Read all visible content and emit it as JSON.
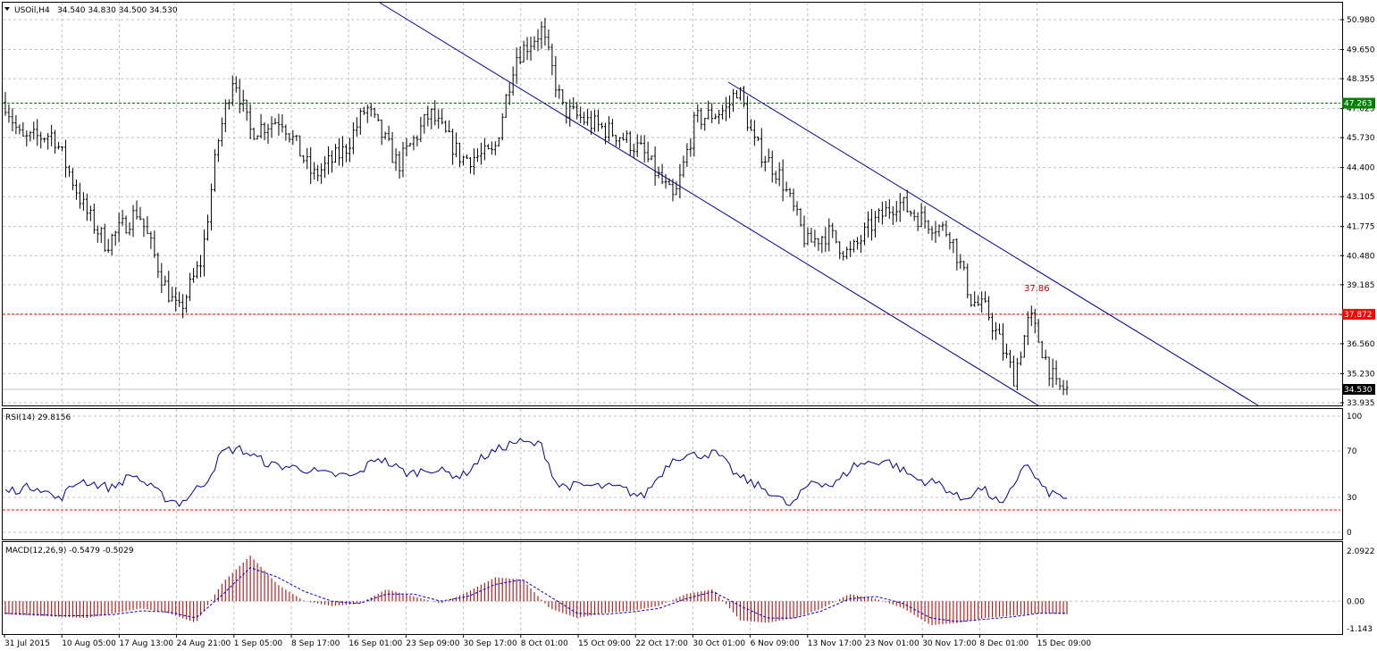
{
  "header": {
    "symbol": "USOil,H4",
    "ohlc": "34.540 34.830 34.500 34.530"
  },
  "rsi": {
    "label": "RSI(14) 29.8156"
  },
  "macd": {
    "label": "MACD(12,26,9) -0.5479 -0.5029"
  },
  "annotation": {
    "text": "37.86",
    "color": "#c00000"
  },
  "colors": {
    "bars": "#000000",
    "channel": "#00008b",
    "level_green": "#008000",
    "level_red": "#ff0000",
    "rsi_line": "#00008b",
    "macd_hist": "#b22222",
    "macd_signal": "#0000cd"
  },
  "chart_data": [
    {
      "type": "ohlc",
      "title": "USOil,H4",
      "ylim": [
        33.4,
        52.2
      ],
      "yticks": [
        "50.980",
        "49.650",
        "48.355",
        "47.025",
        "45.730",
        "44.400",
        "43.105",
        "41.775",
        "40.480",
        "39.185",
        "37.860",
        "36.560",
        "35.230",
        "33.935"
      ],
      "levels": [
        {
          "value": 47.263,
          "label": "47.263",
          "color": "#008000"
        },
        {
          "value": 37.872,
          "label": "37.872",
          "color": "#ff0000"
        }
      ],
      "current_price": {
        "value": 34.53,
        "label": "34.530"
      },
      "channel_upper": [
        [
          0.0,
          52.9
        ],
        [
          0.0,
          52.9
        ]
      ],
      "keypoints": [
        [
          0,
          47.3
        ],
        [
          0.015,
          45.6
        ],
        [
          0.045,
          45.9
        ],
        [
          0.075,
          42.5
        ],
        [
          0.095,
          41.0
        ],
        [
          0.125,
          42.5
        ],
        [
          0.15,
          39.2
        ],
        [
          0.163,
          37.9
        ],
        [
          0.185,
          40.3
        ],
        [
          0.2,
          45.5
        ],
        [
          0.215,
          48.6
        ],
        [
          0.23,
          46.0
        ],
        [
          0.26,
          46.6
        ],
        [
          0.29,
          44.0
        ],
        [
          0.32,
          45.2
        ],
        [
          0.34,
          47.1
        ],
        [
          0.37,
          44.5
        ],
        [
          0.4,
          46.8
        ],
        [
          0.43,
          44.8
        ],
        [
          0.46,
          45.0
        ],
        [
          0.48,
          49.3
        ],
        [
          0.505,
          50.5
        ],
        [
          0.525,
          47.0
        ],
        [
          0.55,
          46.4
        ],
        [
          0.58,
          45.8
        ],
        [
          0.6,
          45.1
        ],
        [
          0.63,
          42.9
        ],
        [
          0.65,
          46.5
        ],
        [
          0.68,
          47.0
        ],
        [
          0.69,
          48.0
        ],
        [
          0.705,
          45.5
        ],
        [
          0.73,
          44.0
        ],
        [
          0.755,
          41.0
        ],
        [
          0.775,
          41.5
        ],
        [
          0.795,
          40.5
        ],
        [
          0.815,
          41.8
        ],
        [
          0.84,
          42.9
        ],
        [
          0.86,
          42.2
        ],
        [
          0.89,
          41.5
        ],
        [
          0.91,
          38.5
        ],
        [
          0.925,
          38.0
        ],
        [
          0.95,
          35.1
        ],
        [
          0.965,
          37.8
        ],
        [
          0.99,
          34.6
        ],
        [
          1.0,
          34.53
        ]
      ],
      "x_tick_labels": [
        "31 Jul 2015",
        "10 Aug 05:00",
        "17 Aug 13:00",
        "24 Aug 21:00",
        "1 Sep 05:00",
        "8 Sep 17:00",
        "16 Sep 01:00",
        "23 Sep 09:00",
        "30 Sep 17:00",
        "8 Oct 01:00",
        "15 Oct 09:00",
        "22 Oct 17:00",
        "30 Oct 01:00",
        "6 Nov 09:00",
        "13 Nov 17:00",
        "23 Nov 01:00",
        "30 Nov 17:00",
        "8 Dec 01:00",
        "15 Dec 09:00"
      ]
    },
    {
      "type": "line",
      "title": "RSI(14) 29.8156",
      "ylim": [
        0,
        100
      ],
      "yticks": [
        "100",
        "70",
        "30",
        "0"
      ],
      "levels": [
        30
      ],
      "last_value": 29.8156,
      "keypoints": [
        [
          0,
          35
        ],
        [
          0.03,
          40
        ],
        [
          0.05,
          28
        ],
        [
          0.07,
          45
        ],
        [
          0.1,
          38
        ],
        [
          0.12,
          50
        ],
        [
          0.15,
          30
        ],
        [
          0.165,
          25
        ],
        [
          0.19,
          45
        ],
        [
          0.205,
          70
        ],
        [
          0.22,
          72
        ],
        [
          0.25,
          58
        ],
        [
          0.28,
          55
        ],
        [
          0.3,
          50
        ],
        [
          0.33,
          48
        ],
        [
          0.35,
          65
        ],
        [
          0.38,
          50
        ],
        [
          0.4,
          55
        ],
        [
          0.43,
          48
        ],
        [
          0.45,
          65
        ],
        [
          0.48,
          78
        ],
        [
          0.505,
          75
        ],
        [
          0.52,
          40
        ],
        [
          0.55,
          40
        ],
        [
          0.58,
          38
        ],
        [
          0.6,
          30
        ],
        [
          0.63,
          65
        ],
        [
          0.67,
          68
        ],
        [
          0.69,
          48
        ],
        [
          0.72,
          35
        ],
        [
          0.74,
          22
        ],
        [
          0.76,
          45
        ],
        [
          0.78,
          40
        ],
        [
          0.8,
          58
        ],
        [
          0.83,
          62
        ],
        [
          0.86,
          45
        ],
        [
          0.88,
          42
        ],
        [
          0.9,
          28
        ],
        [
          0.92,
          38
        ],
        [
          0.94,
          22
        ],
        [
          0.96,
          60
        ],
        [
          0.98,
          35
        ],
        [
          1.0,
          29.8
        ]
      ]
    },
    {
      "type": "bar",
      "title": "MACD(12,26,9) -0.5479 -0.5029",
      "ylim": [
        -1.143,
        2.0922
      ],
      "yticks": [
        "2.0922",
        "0.00",
        "-1.143"
      ],
      "series": [
        {
          "name": "MACD",
          "values": [
            -0.55,
            -0.6,
            -0.65,
            -0.7,
            -0.5,
            -0.3,
            -0.5,
            -0.9,
            0.8,
            1.9,
            0.7,
            0.0,
            -0.2,
            -0.1,
            0.5,
            0.2,
            -0.1,
            0.4,
            1.0,
            0.9,
            -0.3,
            -0.7,
            -0.5,
            -0.4,
            -0.2,
            0.3,
            0.5,
            -0.8,
            -0.9,
            -0.7,
            -0.3,
            0.3,
            0.1,
            -0.3,
            -1.0,
            -0.9,
            -0.7,
            -0.6,
            -0.5,
            -0.55
          ]
        },
        {
          "name": "Signal",
          "values": [
            -0.5,
            -0.55,
            -0.6,
            -0.6,
            -0.55,
            -0.4,
            -0.45,
            -0.7,
            0.3,
            1.4,
            1.0,
            0.4,
            0.0,
            -0.1,
            0.3,
            0.3,
            0.0,
            0.2,
            0.7,
            0.9,
            0.2,
            -0.5,
            -0.55,
            -0.45,
            -0.3,
            0.1,
            0.4,
            -0.2,
            -0.7,
            -0.7,
            -0.4,
            0.1,
            0.2,
            -0.1,
            -0.7,
            -0.85,
            -0.75,
            -0.65,
            -0.5,
            -0.5
          ]
        }
      ]
    }
  ]
}
